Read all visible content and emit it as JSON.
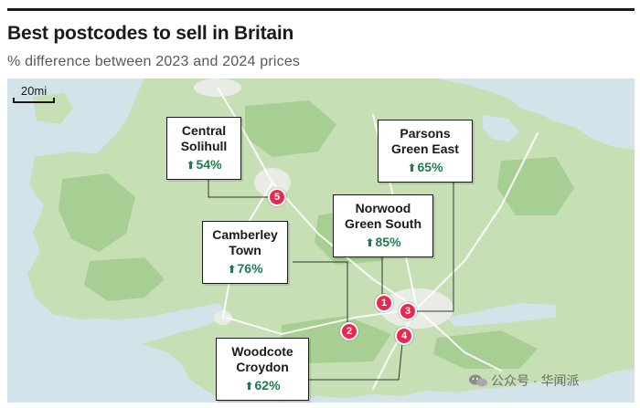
{
  "header": {
    "title": "Best postcodes to sell in Britain",
    "subtitle": "% difference between 2023 and 2024 prices"
  },
  "scale": {
    "label": "20mi"
  },
  "colors": {
    "sea": "#d3e3ea",
    "land": "#c6dfb5",
    "forest": "#a8cf93",
    "urban": "#e9ece4",
    "road": "#ffffff",
    "marker": "#e8294f",
    "increase": "#1f7a4d"
  },
  "places": [
    {
      "rank": "1",
      "name_line1": "Norwood",
      "name_line2": "Green South",
      "change": "85%",
      "direction_icon": "up-arrow-icon"
    },
    {
      "rank": "2",
      "name_line1": "Camberley",
      "name_line2": "Town",
      "change": "76%",
      "direction_icon": "up-arrow-icon"
    },
    {
      "rank": "3",
      "name_line1": "Parsons",
      "name_line2": "Green East",
      "change": "65%",
      "direction_icon": "up-arrow-icon"
    },
    {
      "rank": "4",
      "name_line1": "Woodcote",
      "name_line2": "Croydon",
      "change": "62%",
      "direction_icon": "up-arrow-icon"
    },
    {
      "rank": "5",
      "name_line1": "Central",
      "name_line2": "Solihull",
      "change": "54%",
      "direction_icon": "up-arrow-icon"
    }
  ],
  "watermark": {
    "text": "公众号 · 华闻派"
  }
}
